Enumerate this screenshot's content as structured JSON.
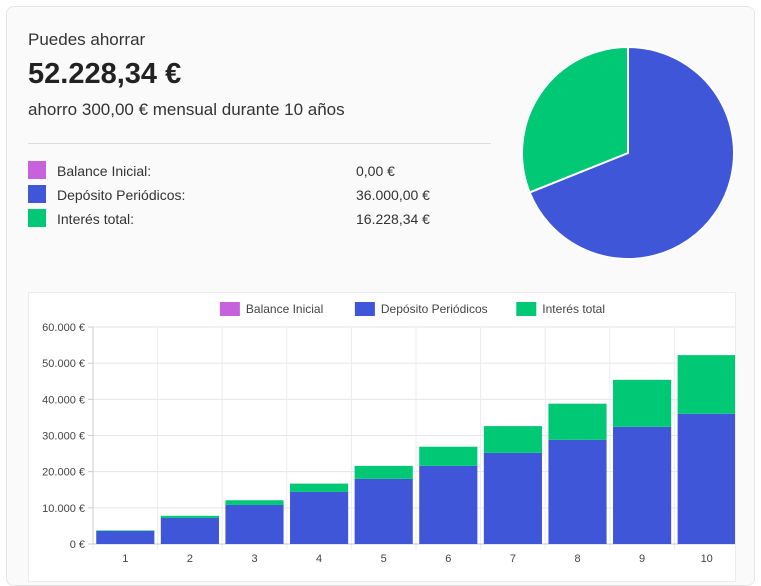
{
  "summary": {
    "intro": "Puedes ahorrar",
    "total": "52.228,34 €",
    "subtitle": "ahorro 300,00 € mensual durante 10 años"
  },
  "breakdown": [
    {
      "label": "Balance Inicial:",
      "value": "0,00 €",
      "color": "#c762dd"
    },
    {
      "label": "Depósito Periódicos:",
      "value": "36.000,00 €",
      "color": "#3f56d8"
    },
    {
      "label": "Interés total:",
      "value": "16.228,34 €",
      "color": "#00c875"
    }
  ],
  "chart_data": [
    {
      "type": "pie",
      "slices": [
        {
          "name": "Balance Inicial",
          "value": 0,
          "color": "#c762dd"
        },
        {
          "name": "Depósito Periódicos",
          "value": 36000,
          "color": "#3f56d8"
        },
        {
          "name": "Interés total",
          "value": 16228.34,
          "color": "#00c875"
        }
      ]
    },
    {
      "type": "bar",
      "stacked": true,
      "legend_position": "top",
      "grid": true,
      "categories": [
        "1",
        "2",
        "3",
        "4",
        "5",
        "6",
        "7",
        "8",
        "9",
        "10"
      ],
      "ylim": [
        0,
        60000
      ],
      "yticks": [
        {
          "value": 0,
          "label": "0 €"
        },
        {
          "value": 10000,
          "label": "10.000 €"
        },
        {
          "value": 20000,
          "label": "20.000 €"
        },
        {
          "value": 30000,
          "label": "30.000 €"
        },
        {
          "value": 40000,
          "label": "40.000 €"
        },
        {
          "value": 50000,
          "label": "50.000 €"
        },
        {
          "value": 60000,
          "label": "60.000 €"
        }
      ],
      "series": [
        {
          "name": "Balance Inicial",
          "color": "#c762dd",
          "values": [
            0,
            0,
            0,
            0,
            0,
            0,
            0,
            0,
            0,
            0
          ]
        },
        {
          "name": "Depósito Periódicos",
          "color": "#3f56d8",
          "values": [
            3600,
            7200,
            10800,
            14400,
            18000,
            21600,
            25200,
            28800,
            32400,
            36000
          ]
        },
        {
          "name": "Interés total",
          "color": "#00c875",
          "values": [
            150,
            600,
            1300,
            2300,
            3600,
            5300,
            7400,
            10000,
            13000,
            16228.34
          ]
        }
      ]
    }
  ]
}
